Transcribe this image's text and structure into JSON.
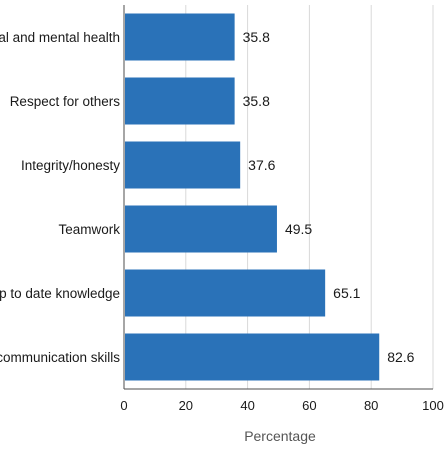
{
  "chart_data": {
    "type": "bar",
    "orientation": "horizontal",
    "categories": [
      "Physical and mental health",
      "Respect for others",
      "Integrity/honesty",
      "Teamwork",
      "Up to date knowledge",
      "Good communication skills"
    ],
    "values": [
      35.8,
      35.8,
      37.6,
      49.5,
      65.1,
      82.6
    ],
    "value_labels": [
      "35.8",
      "35.8",
      "37.6",
      "49.5",
      "65.1",
      "82.6"
    ],
    "xlabel": "Percentage",
    "ylabel": "",
    "xlim": [
      0,
      100
    ],
    "xticks": [
      0,
      20,
      40,
      60,
      80,
      100
    ],
    "grid": true,
    "legend": "none",
    "bar_color": "#2a72b8"
  }
}
